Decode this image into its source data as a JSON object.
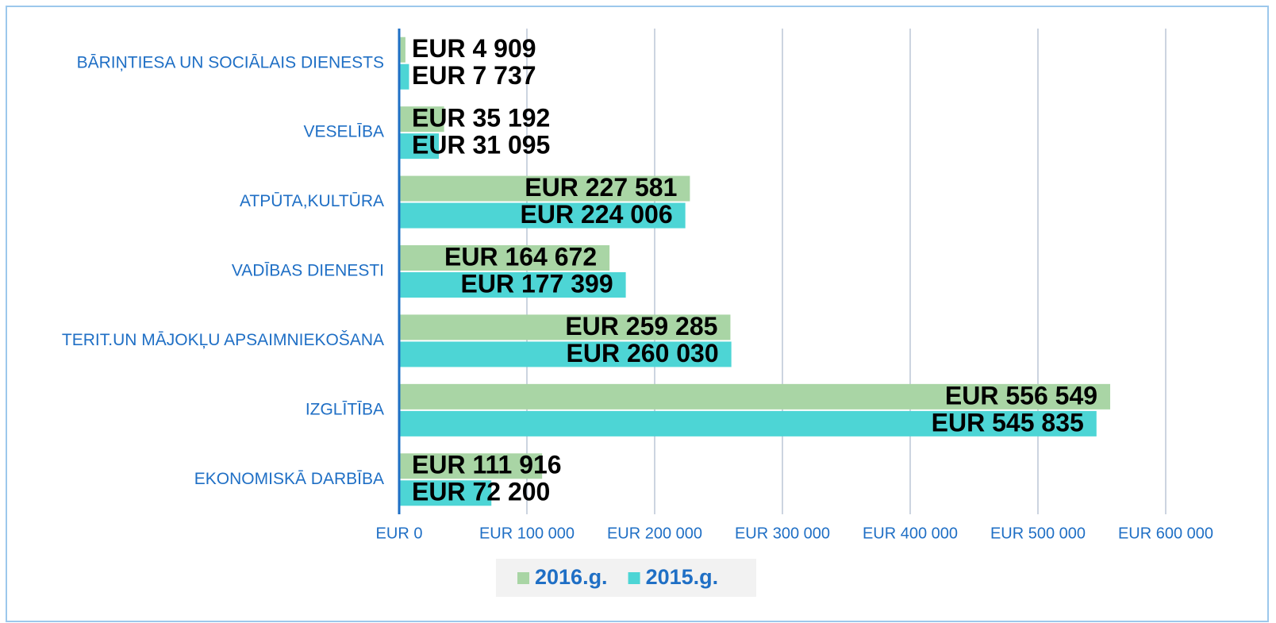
{
  "chart_data": {
    "type": "bar",
    "orientation": "horizontal",
    "categories": [
      "BĀRIŅTIESA UN SOCIĀLAIS DIENESTS",
      "VESELĪBA",
      "ATPŪTA,KULTŪRA",
      "VADĪBAS DIENESTI",
      "TERIT.UN MĀJOKĻU APSAIMNIEKOŠANA",
      "IZGLĪTĪBA",
      "EKONOMISKĀ DARBĪBA"
    ],
    "series": [
      {
        "name": "2016.g.",
        "color": "#a9d5a5",
        "values": [
          4909,
          35192,
          227581,
          164672,
          259285,
          556549,
          111916
        ],
        "value_labels": [
          "EUR 4 909",
          "EUR 35 192",
          "EUR 227 581",
          "EUR 164 672",
          "EUR 259 285",
          "EUR 556 549",
          "EUR 111 916"
        ]
      },
      {
        "name": "2015.g.",
        "color": "#4dd5d5",
        "values": [
          7737,
          31095,
          224006,
          177399,
          260030,
          545835,
          72200
        ],
        "value_labels": [
          "EUR 7 737",
          "EUR 31 095",
          "EUR 224 006",
          "EUR 177 399",
          "EUR 260 030",
          "EUR 545 835",
          "EUR 72 200"
        ]
      }
    ],
    "xlim": [
      0,
      600000
    ],
    "xticks": [
      {
        "value": 0,
        "label": "EUR 0"
      },
      {
        "value": 100000,
        "label": "EUR 100 000"
      },
      {
        "value": 200000,
        "label": "EUR 200 000"
      },
      {
        "value": 300000,
        "label": "EUR 300 000"
      },
      {
        "value": 400000,
        "label": "EUR 400 000"
      },
      {
        "value": 500000,
        "label": "EUR 500 000"
      },
      {
        "value": 600000,
        "label": "EUR 600 000"
      }
    ],
    "grid": true,
    "legend": "bottom"
  }
}
